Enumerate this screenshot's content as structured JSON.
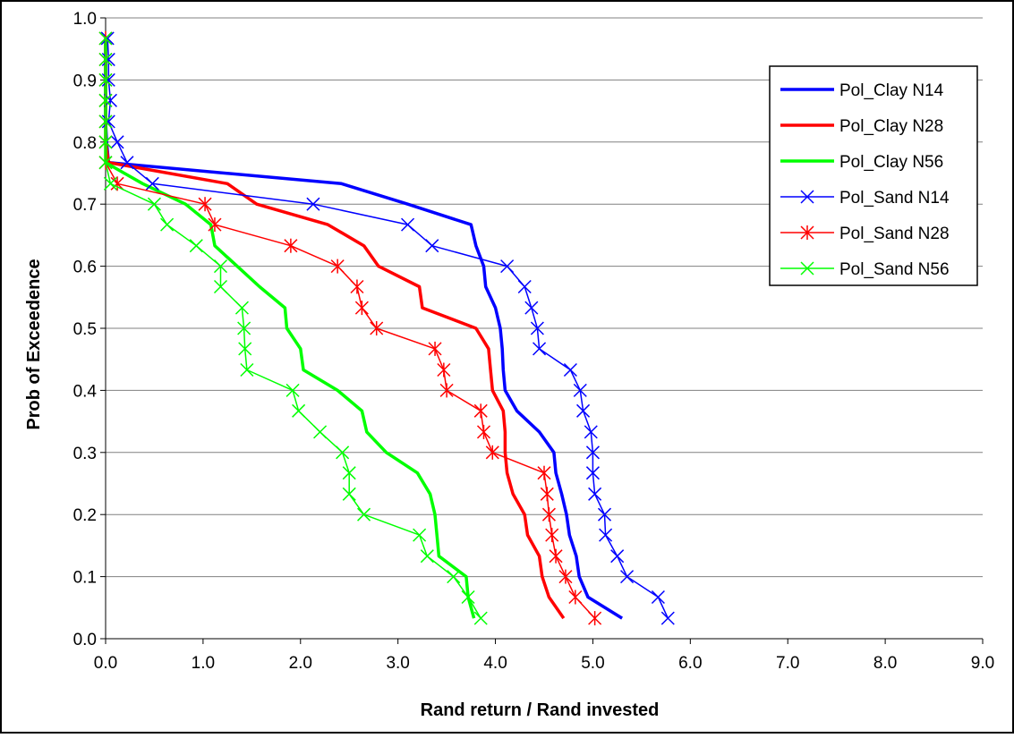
{
  "chart_data": {
    "type": "line",
    "title": "",
    "xlabel": "Rand return / Rand invested",
    "ylabel": "Prob of Exceedence",
    "xlim": [
      0,
      9
    ],
    "ylim": [
      0,
      1
    ],
    "x_ticks": [
      "0.0",
      "1.0",
      "2.0",
      "3.0",
      "4.0",
      "5.0",
      "6.0",
      "7.0",
      "8.0",
      "9.0"
    ],
    "y_ticks": [
      "0.0",
      "0.1",
      "0.2",
      "0.3",
      "0.4",
      "0.5",
      "0.6",
      "0.7",
      "0.8",
      "0.9",
      "1.0"
    ],
    "grid": "horizontal major gridlines",
    "legend_position": "top-right",
    "series": [
      {
        "name": "Pol_Clay N14",
        "color": "#0000ff",
        "style": "thick-line",
        "points": [
          [
            0.0,
            0.967
          ],
          [
            0.0,
            0.933
          ],
          [
            0.0,
            0.9
          ],
          [
            0.0,
            0.867
          ],
          [
            0.0,
            0.833
          ],
          [
            0.01,
            0.8
          ],
          [
            0.03,
            0.767
          ],
          [
            2.42,
            0.733
          ],
          [
            3.1,
            0.7
          ],
          [
            3.75,
            0.667
          ],
          [
            3.8,
            0.633
          ],
          [
            3.88,
            0.6
          ],
          [
            3.9,
            0.567
          ],
          [
            4.0,
            0.533
          ],
          [
            4.05,
            0.5
          ],
          [
            4.07,
            0.467
          ],
          [
            4.08,
            0.433
          ],
          [
            4.1,
            0.4
          ],
          [
            4.22,
            0.367
          ],
          [
            4.45,
            0.333
          ],
          [
            4.6,
            0.3
          ],
          [
            4.62,
            0.267
          ],
          [
            4.68,
            0.233
          ],
          [
            4.73,
            0.2
          ],
          [
            4.76,
            0.167
          ],
          [
            4.83,
            0.133
          ],
          [
            4.86,
            0.1
          ],
          [
            4.95,
            0.067
          ],
          [
            5.3,
            0.033
          ]
        ]
      },
      {
        "name": "Pol_Clay N28",
        "color": "#ff0000",
        "style": "thick-line",
        "points": [
          [
            0.0,
            0.967
          ],
          [
            0.0,
            0.933
          ],
          [
            0.0,
            0.9
          ],
          [
            0.0,
            0.867
          ],
          [
            0.0,
            0.833
          ],
          [
            0.0,
            0.8
          ],
          [
            0.03,
            0.767
          ],
          [
            1.25,
            0.733
          ],
          [
            1.55,
            0.7
          ],
          [
            2.28,
            0.667
          ],
          [
            2.65,
            0.633
          ],
          [
            2.8,
            0.6
          ],
          [
            3.22,
            0.567
          ],
          [
            3.25,
            0.533
          ],
          [
            3.8,
            0.5
          ],
          [
            3.93,
            0.467
          ],
          [
            3.95,
            0.433
          ],
          [
            3.97,
            0.4
          ],
          [
            4.08,
            0.367
          ],
          [
            4.1,
            0.333
          ],
          [
            4.1,
            0.3
          ],
          [
            4.12,
            0.267
          ],
          [
            4.18,
            0.233
          ],
          [
            4.3,
            0.2
          ],
          [
            4.33,
            0.167
          ],
          [
            4.45,
            0.133
          ],
          [
            4.48,
            0.1
          ],
          [
            4.55,
            0.067
          ],
          [
            4.7,
            0.033
          ]
        ]
      },
      {
        "name": "Pol_Clay N56",
        "color": "#00ff00",
        "style": "thick-line",
        "points": [
          [
            0.0,
            0.967
          ],
          [
            0.0,
            0.933
          ],
          [
            0.0,
            0.9
          ],
          [
            0.0,
            0.867
          ],
          [
            0.0,
            0.833
          ],
          [
            0.0,
            0.8
          ],
          [
            0.0,
            0.767
          ],
          [
            0.38,
            0.733
          ],
          [
            0.82,
            0.7
          ],
          [
            1.08,
            0.667
          ],
          [
            1.12,
            0.633
          ],
          [
            1.35,
            0.6
          ],
          [
            1.58,
            0.567
          ],
          [
            1.84,
            0.533
          ],
          [
            1.86,
            0.5
          ],
          [
            2.0,
            0.467
          ],
          [
            2.03,
            0.433
          ],
          [
            2.38,
            0.4
          ],
          [
            2.63,
            0.367
          ],
          [
            2.68,
            0.333
          ],
          [
            2.88,
            0.3
          ],
          [
            3.2,
            0.267
          ],
          [
            3.33,
            0.233
          ],
          [
            3.38,
            0.2
          ],
          [
            3.4,
            0.167
          ],
          [
            3.42,
            0.133
          ],
          [
            3.7,
            0.1
          ],
          [
            3.72,
            0.067
          ],
          [
            3.78,
            0.033
          ]
        ]
      },
      {
        "name": "Pol_Sand N14",
        "color": "#0000ff",
        "style": "thin-line-x-marker",
        "points": [
          [
            0.02,
            0.967
          ],
          [
            0.03,
            0.933
          ],
          [
            0.03,
            0.9
          ],
          [
            0.05,
            0.867
          ],
          [
            0.03,
            0.833
          ],
          [
            0.12,
            0.8
          ],
          [
            0.22,
            0.767
          ],
          [
            0.48,
            0.733
          ],
          [
            2.13,
            0.7
          ],
          [
            3.1,
            0.667
          ],
          [
            3.35,
            0.633
          ],
          [
            4.12,
            0.6
          ],
          [
            4.3,
            0.567
          ],
          [
            4.37,
            0.533
          ],
          [
            4.43,
            0.5
          ],
          [
            4.45,
            0.467
          ],
          [
            4.77,
            0.433
          ],
          [
            4.87,
            0.4
          ],
          [
            4.9,
            0.367
          ],
          [
            4.98,
            0.333
          ],
          [
            5.0,
            0.3
          ],
          [
            5.0,
            0.267
          ],
          [
            5.02,
            0.233
          ],
          [
            5.12,
            0.2
          ],
          [
            5.13,
            0.167
          ],
          [
            5.25,
            0.133
          ],
          [
            5.35,
            0.1
          ],
          [
            5.67,
            0.067
          ],
          [
            5.77,
            0.033
          ]
        ]
      },
      {
        "name": "Pol_Sand N28",
        "color": "#ff0000",
        "style": "thin-line-star-marker",
        "points": [
          [
            0.0,
            0.967
          ],
          [
            0.0,
            0.933
          ],
          [
            0.0,
            0.9
          ],
          [
            0.0,
            0.867
          ],
          [
            0.0,
            0.833
          ],
          [
            0.0,
            0.8
          ],
          [
            0.0,
            0.767
          ],
          [
            0.12,
            0.733
          ],
          [
            1.02,
            0.7
          ],
          [
            1.12,
            0.667
          ],
          [
            1.9,
            0.633
          ],
          [
            2.38,
            0.6
          ],
          [
            2.58,
            0.567
          ],
          [
            2.63,
            0.533
          ],
          [
            2.78,
            0.5
          ],
          [
            3.38,
            0.467
          ],
          [
            3.47,
            0.433
          ],
          [
            3.5,
            0.4
          ],
          [
            3.85,
            0.367
          ],
          [
            3.88,
            0.333
          ],
          [
            3.97,
            0.3
          ],
          [
            4.5,
            0.267
          ],
          [
            4.53,
            0.233
          ],
          [
            4.55,
            0.2
          ],
          [
            4.58,
            0.167
          ],
          [
            4.62,
            0.133
          ],
          [
            4.72,
            0.1
          ],
          [
            4.82,
            0.067
          ],
          [
            5.02,
            0.033
          ]
        ]
      },
      {
        "name": "Pol_Sand N56",
        "color": "#00ff00",
        "style": "thin-line-x-marker",
        "points": [
          [
            0.0,
            0.967
          ],
          [
            0.0,
            0.933
          ],
          [
            0.0,
            0.9
          ],
          [
            0.0,
            0.867
          ],
          [
            0.0,
            0.833
          ],
          [
            0.0,
            0.8
          ],
          [
            0.0,
            0.767
          ],
          [
            0.05,
            0.733
          ],
          [
            0.5,
            0.7
          ],
          [
            0.63,
            0.667
          ],
          [
            0.93,
            0.633
          ],
          [
            1.18,
            0.6
          ],
          [
            1.18,
            0.567
          ],
          [
            1.4,
            0.533
          ],
          [
            1.42,
            0.5
          ],
          [
            1.43,
            0.467
          ],
          [
            1.45,
            0.433
          ],
          [
            1.92,
            0.4
          ],
          [
            1.98,
            0.367
          ],
          [
            2.2,
            0.333
          ],
          [
            2.43,
            0.3
          ],
          [
            2.5,
            0.267
          ],
          [
            2.5,
            0.233
          ],
          [
            2.65,
            0.2
          ],
          [
            3.22,
            0.167
          ],
          [
            3.3,
            0.133
          ],
          [
            3.57,
            0.1
          ],
          [
            3.72,
            0.067
          ],
          [
            3.85,
            0.033
          ]
        ]
      }
    ]
  }
}
